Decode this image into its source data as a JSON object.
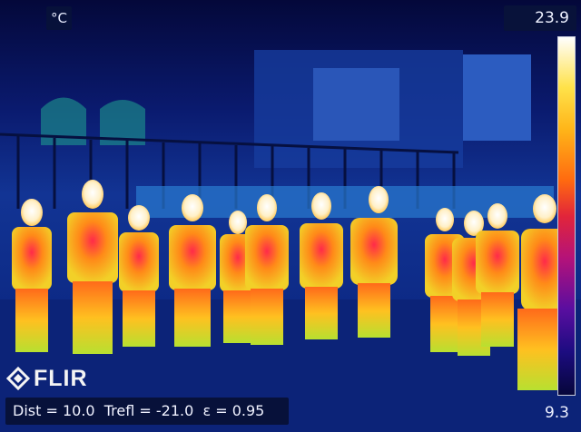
{
  "overlay": {
    "unit": "°C",
    "scale_max": "23.9",
    "scale_min": "9.3",
    "logo_text": "FLIR",
    "params": "Dist = 10.0  Trefl = -21.0  ε = 0.95"
  },
  "colors": {
    "background_cold": "#0a1a70",
    "person_warm": "#ffb020",
    "person_hot": "#e8284a",
    "skin_hottest": "#fff4d8"
  },
  "icons": {
    "logo": "flir-diamond-icon"
  }
}
